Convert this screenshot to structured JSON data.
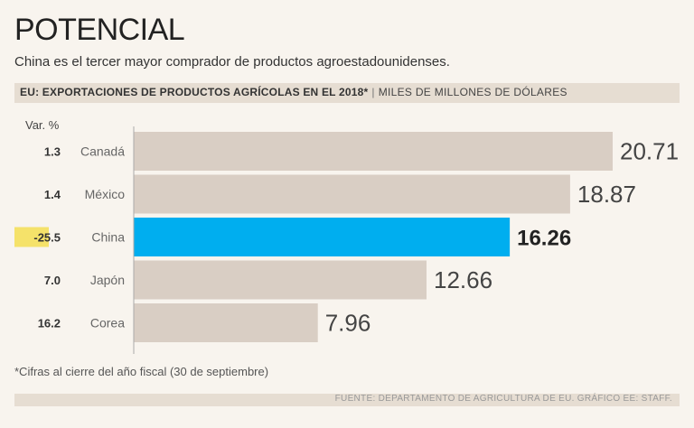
{
  "title": "POTENCIAL",
  "subtitle": "China es el tercer mayor comprador de productos agroestadounidenses.",
  "header": {
    "main": "EU: EXPORTACIONES DE PRODUCTOS AGRÍCOLAS EN EL 2018*",
    "separator": "|",
    "units": "MILES DE MILLONES DE DÓLARES"
  },
  "var_title": "Var. %",
  "footnote": "*Cifras al cierre del año fiscal (30 de septiembre)",
  "source": "FUENTE: DEPARTAMENTO DE AGRICULTURA DE EU. GRÁFICO EE: STAFF.",
  "colors": {
    "bar": "#d9cec4",
    "highlight": "#00aeef",
    "highlight_var": "#f5e26a",
    "axis": "#aaaaaa"
  },
  "chart_data": {
    "type": "bar",
    "orientation": "horizontal",
    "title": "EU: EXPORTACIONES DE PRODUCTOS AGRÍCOLAS EN EL 2018*",
    "units": "MILES DE MILLONES DE DÓLARES",
    "categories": [
      "Canadá",
      "México",
      "China",
      "Japón",
      "Corea"
    ],
    "values": [
      20.71,
      18.87,
      16.26,
      12.66,
      7.96
    ],
    "value_labels": [
      "20.71",
      "18.87",
      "16.26",
      "12.66",
      "7.96"
    ],
    "var_pct": [
      "1.3",
      "1.4",
      "-25.5",
      "7.0",
      "16.2"
    ],
    "highlight": "China",
    "xlim": [
      0,
      21
    ]
  }
}
